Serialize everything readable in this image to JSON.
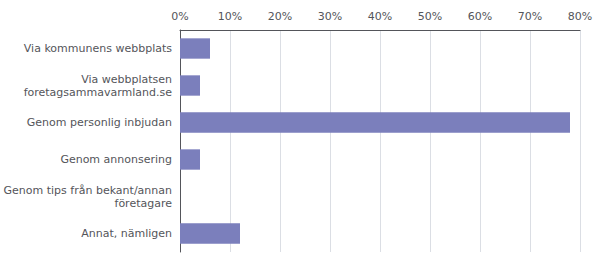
{
  "chart_data": {
    "type": "bar",
    "orientation": "horizontal",
    "categories": [
      "Annat, nämligen",
      "Genom tips från bekant/annan\nföretagare",
      "Genom annonsering",
      "Genom personlig inbjudan",
      "Via webbplatsen\nforetagsammavarmland.se",
      "Via kommunens webbplats"
    ],
    "values": [
      12,
      0,
      4,
      78,
      4,
      6
    ],
    "color": "#7b7fbc",
    "xlim": [
      0,
      80
    ],
    "xticks": [
      {
        "value": 0,
        "label": "0%"
      },
      {
        "value": 10,
        "label": "10%"
      },
      {
        "value": 20,
        "label": "20%"
      },
      {
        "value": 30,
        "label": "30%"
      },
      {
        "value": 40,
        "label": "40%"
      },
      {
        "value": 50,
        "label": "50%"
      },
      {
        "value": 60,
        "label": "60%"
      },
      {
        "value": 70,
        "label": "70%"
      },
      {
        "value": 80,
        "label": "80%"
      }
    ],
    "grid": true
  }
}
